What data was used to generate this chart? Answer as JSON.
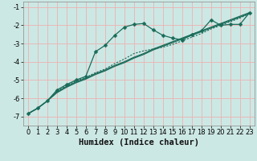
{
  "xlabel": "Humidex (Indice chaleur)",
  "xlim": [
    -0.5,
    23.5
  ],
  "ylim": [
    -7.5,
    -0.7
  ],
  "yticks": [
    -7,
    -6,
    -5,
    -4,
    -3,
    -2,
    -1
  ],
  "xticks": [
    0,
    1,
    2,
    3,
    4,
    5,
    6,
    7,
    8,
    9,
    10,
    11,
    12,
    13,
    14,
    15,
    16,
    17,
    18,
    19,
    20,
    21,
    22,
    23
  ],
  "bg_color": "#cce8e4",
  "grid_color": "#e8b8b8",
  "line_color": "#1a6b5a",
  "line1_y": [
    -6.85,
    -6.55,
    -6.15,
    -5.65,
    -5.35,
    -5.1,
    -4.9,
    -4.65,
    -4.45,
    -4.2,
    -4.0,
    -3.75,
    -3.55,
    -3.3,
    -3.1,
    -2.9,
    -2.7,
    -2.5,
    -2.3,
    -2.1,
    -1.9,
    -1.7,
    -1.5,
    -1.3
  ],
  "line2_y": [
    -6.85,
    -6.55,
    -6.15,
    -5.7,
    -5.4,
    -5.15,
    -4.95,
    -4.7,
    -4.5,
    -4.25,
    -4.05,
    -3.8,
    -3.6,
    -3.35,
    -3.15,
    -2.95,
    -2.75,
    -2.55,
    -2.35,
    -2.15,
    -1.95,
    -1.75,
    -1.55,
    -1.35
  ],
  "line_marked_y": [
    -6.85,
    -6.55,
    -6.15,
    -5.55,
    -5.25,
    -5.0,
    -4.8,
    -3.45,
    -3.1,
    -2.55,
    -2.1,
    -1.95,
    -1.9,
    -2.25,
    -2.55,
    -2.7,
    -2.8,
    -2.5,
    -2.3,
    -1.7,
    -2.0,
    -1.95,
    -1.95,
    -1.3
  ],
  "line_dotted_y": [
    -6.85,
    -6.55,
    -6.15,
    -5.6,
    -5.3,
    -5.05,
    -4.85,
    -4.6,
    -4.4,
    -4.1,
    -3.85,
    -3.55,
    -3.4,
    -3.3,
    -3.2,
    -3.05,
    -2.85,
    -2.65,
    -2.45,
    -2.2,
    -2.0,
    -1.8,
    -1.6,
    -1.35
  ],
  "xlabel_fontsize": 7.5,
  "tick_fontsize": 6
}
